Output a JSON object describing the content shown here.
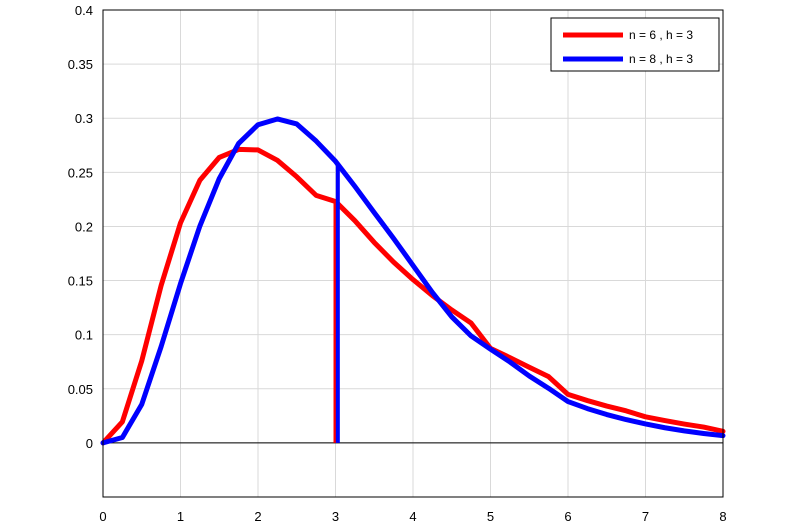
{
  "chart_data": {
    "type": "line",
    "title": "",
    "xlabel": "",
    "ylabel": "",
    "xlim": [
      0,
      8
    ],
    "ylim": [
      -0.05,
      0.4
    ],
    "grid": true,
    "legend_placement": "top-right",
    "x_ticks": [
      "0",
      "1",
      "2",
      "3",
      "4",
      "5",
      "6",
      "7",
      "8"
    ],
    "y_ticks": [
      "0",
      "0.05",
      "0.1",
      "0.15",
      "0.2",
      "0.25",
      "0.3",
      "0.35",
      "0.4"
    ],
    "x_tick_values": [
      0,
      1,
      2,
      3,
      4,
      5,
      6,
      7,
      8
    ],
    "y_tick_values": [
      0,
      0.05,
      0.1,
      0.15,
      0.2,
      0.25,
      0.3,
      0.35,
      0.4
    ],
    "series": [
      {
        "name": "n = 6 , h = 3",
        "color": "#ff0000",
        "x": [
          0,
          0.25,
          0.5,
          0.75,
          1,
          1.25,
          1.5,
          1.75,
          2,
          2.25,
          2.5,
          2.75,
          3,
          3.25,
          3.5,
          3.75,
          4,
          4.25,
          4.5,
          4.75,
          5,
          5.25,
          5.5,
          5.75,
          6,
          6.25,
          6.5,
          6.75,
          7,
          7.25,
          7.5,
          7.75,
          8
        ],
        "y": [
          0,
          0.0195,
          0.0758,
          0.1454,
          0.2033,
          0.2427,
          0.2638,
          0.2712,
          0.2707,
          0.2611,
          0.2459,
          0.2287,
          0.2231,
          0.2053,
          0.1852,
          0.167,
          0.1509,
          0.1361,
          0.1228,
          0.1107,
          0.0873,
          0.0788,
          0.0699,
          0.0612,
          0.0448,
          0.0391,
          0.034,
          0.0296,
          0.0241,
          0.0206,
          0.0174,
          0.0146,
          0.0107
        ],
        "marker_x": 3
      },
      {
        "name": "n = 8 , h = 3",
        "color": "#0000ff",
        "x": [
          0,
          0.25,
          0.5,
          0.75,
          1,
          1.25,
          1.5,
          1.75,
          2,
          2.25,
          2.5,
          2.75,
          3,
          3.25,
          3.5,
          3.75,
          4,
          4.25,
          4.5,
          4.75,
          5,
          5.25,
          5.5,
          5.75,
          6,
          6.25,
          6.5,
          6.75,
          7,
          7.25,
          7.5,
          7.75,
          8
        ],
        "y": [
          0,
          0.005,
          0.0356,
          0.089,
          0.1472,
          0.2004,
          0.2442,
          0.2767,
          0.294,
          0.2993,
          0.2947,
          0.2789,
          0.2602,
          0.237,
          0.2128,
          0.1889,
          0.164,
          0.139,
          0.1165,
          0.0988,
          0.0866,
          0.0748,
          0.0618,
          0.0504,
          0.0382,
          0.0317,
          0.0262,
          0.0215,
          0.0175,
          0.014,
          0.0111,
          0.0087,
          0.0067
        ],
        "marker_x": 3.03
      }
    ]
  }
}
